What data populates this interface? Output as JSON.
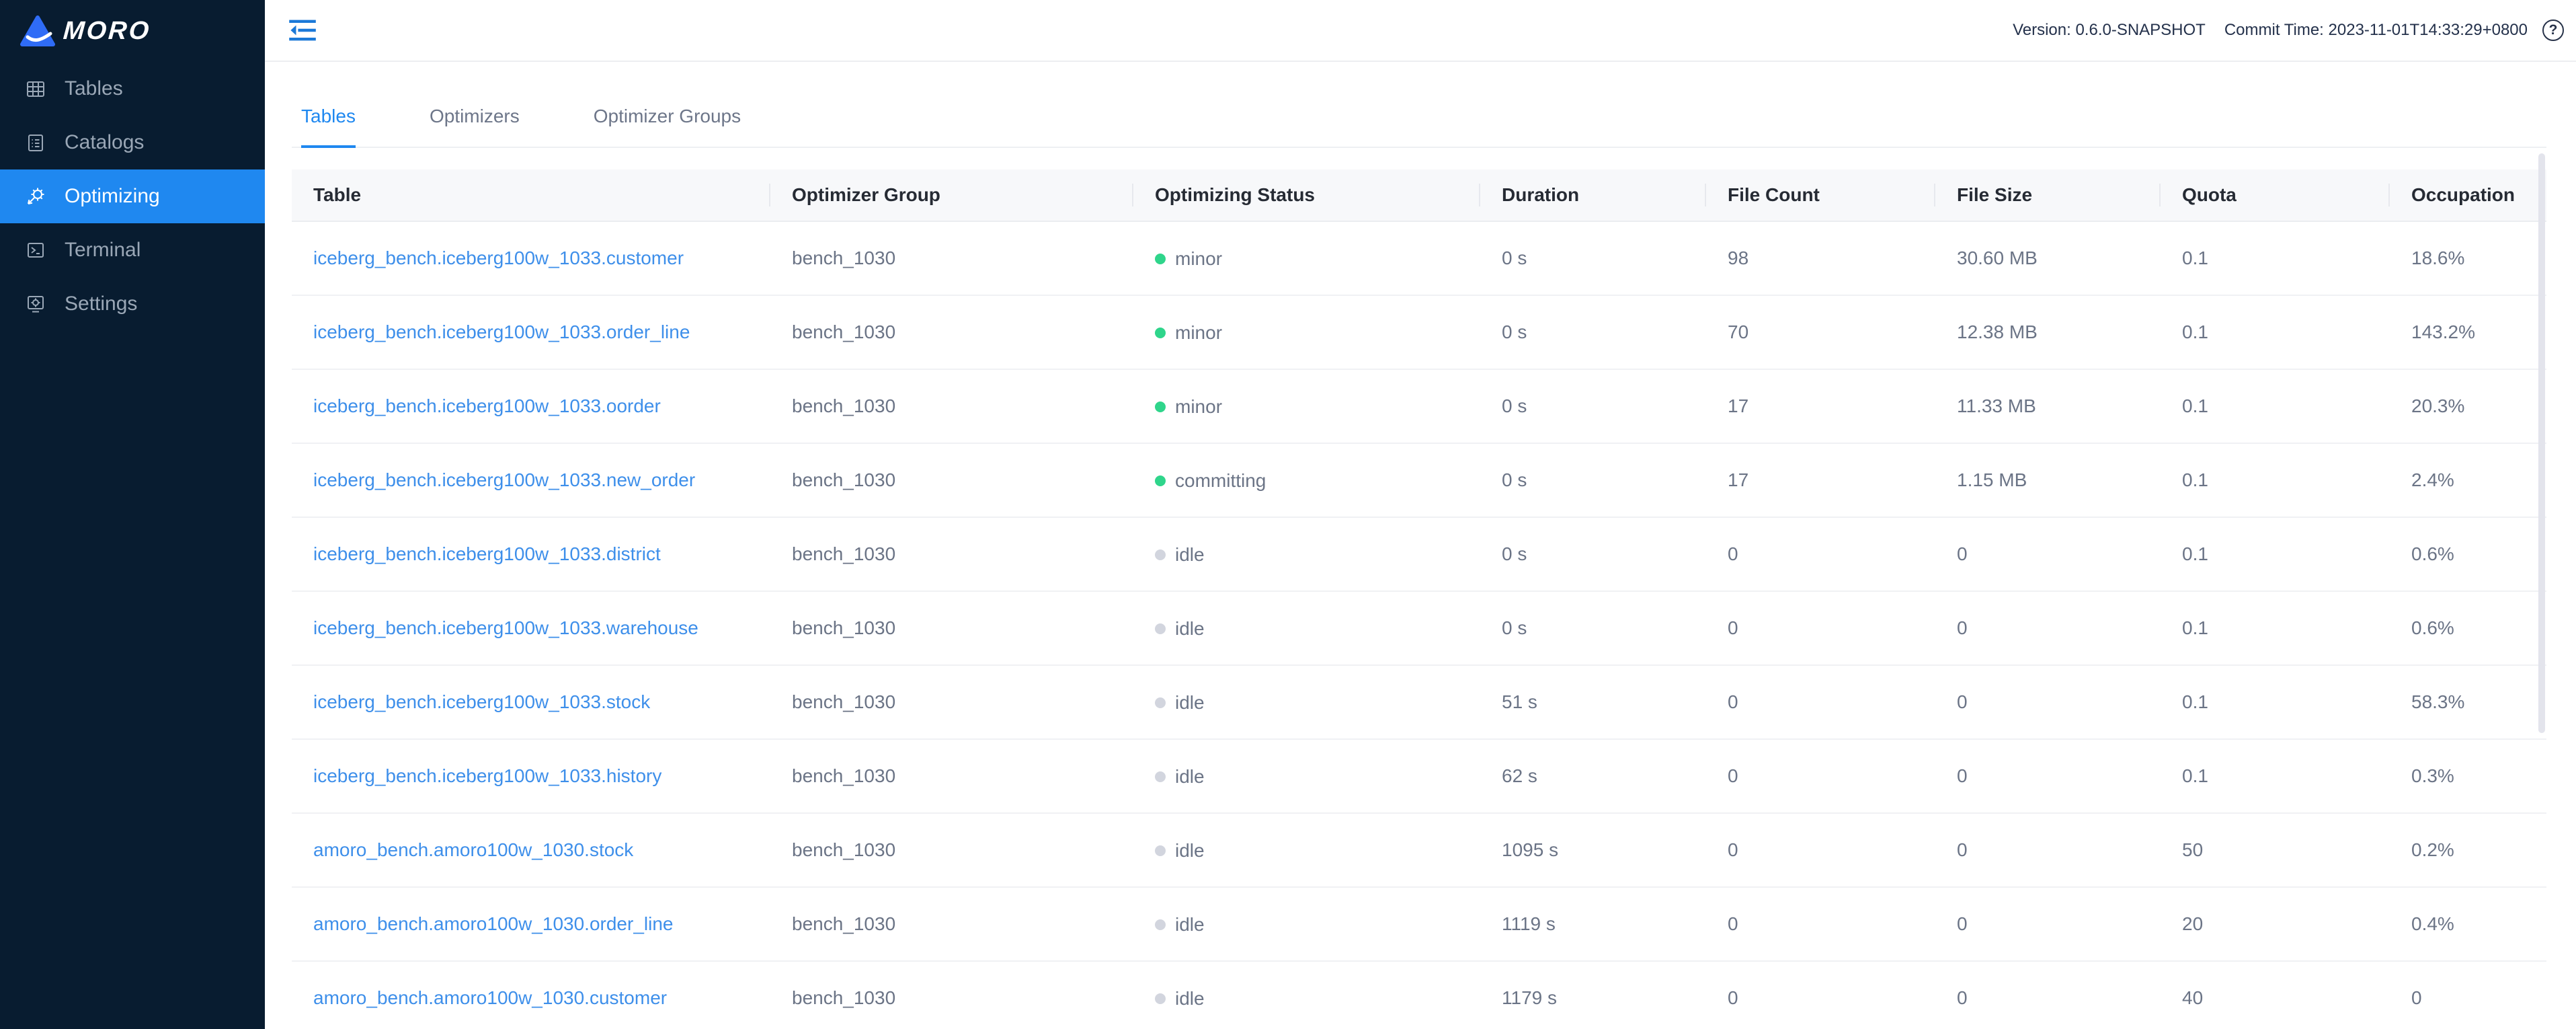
{
  "app": {
    "logo_text": "MORO"
  },
  "sidebar": {
    "items": [
      {
        "name": "sidebar-item-tables",
        "label": "Tables",
        "icon": "tables-grid-icon",
        "state": ""
      },
      {
        "name": "sidebar-item-catalogs",
        "label": "Catalogs",
        "icon": "catalogs-list-icon",
        "state": ""
      },
      {
        "name": "sidebar-item-optimizing",
        "label": "Optimizing",
        "icon": "optimizing-gear-icon",
        "state": "active"
      },
      {
        "name": "sidebar-item-terminal",
        "label": "Terminal",
        "icon": "terminal-icon",
        "state": ""
      },
      {
        "name": "sidebar-item-settings",
        "label": "Settings",
        "icon": "settings-monitor-icon",
        "state": ""
      }
    ]
  },
  "topbar": {
    "version_label": "Version: 0.6.0-SNAPSHOT",
    "commit_label": "Commit Time: 2023-11-01T14:33:29+0800",
    "help_icon": "question-circle-icon",
    "collapse_icon": "menu-fold-icon"
  },
  "tabs": [
    {
      "name": "tab-tables",
      "label": "Tables",
      "state": "active"
    },
    {
      "name": "tab-optimizers",
      "label": "Optimizers",
      "state": ""
    },
    {
      "name": "tab-optimizer-groups",
      "label": "Optimizer Groups",
      "state": ""
    }
  ],
  "table": {
    "columns": [
      "Table",
      "Optimizer Group",
      "Optimizing Status",
      "Duration",
      "File Count",
      "File Size",
      "Quota",
      "Occupation"
    ],
    "rows": [
      {
        "table": "iceberg_bench.iceberg100w_1033.customer",
        "group": "bench_1030",
        "status": "minor",
        "status_type": "green",
        "duration": "0 s",
        "file_count": "98",
        "file_size": "30.60 MB",
        "quota": "0.1",
        "occupation": "18.6%"
      },
      {
        "table": "iceberg_bench.iceberg100w_1033.order_line",
        "group": "bench_1030",
        "status": "minor",
        "status_type": "green",
        "duration": "0 s",
        "file_count": "70",
        "file_size": "12.38 MB",
        "quota": "0.1",
        "occupation": "143.2%"
      },
      {
        "table": "iceberg_bench.iceberg100w_1033.oorder",
        "group": "bench_1030",
        "status": "minor",
        "status_type": "green",
        "duration": "0 s",
        "file_count": "17",
        "file_size": "11.33 MB",
        "quota": "0.1",
        "occupation": "20.3%"
      },
      {
        "table": "iceberg_bench.iceberg100w_1033.new_order",
        "group": "bench_1030",
        "status": "committing",
        "status_type": "green",
        "duration": "0 s",
        "file_count": "17",
        "file_size": "1.15 MB",
        "quota": "0.1",
        "occupation": "2.4%"
      },
      {
        "table": "iceberg_bench.iceberg100w_1033.district",
        "group": "bench_1030",
        "status": "idle",
        "status_type": "gray",
        "duration": "0 s",
        "file_count": "0",
        "file_size": "0",
        "quota": "0.1",
        "occupation": "0.6%"
      },
      {
        "table": "iceberg_bench.iceberg100w_1033.warehouse",
        "group": "bench_1030",
        "status": "idle",
        "status_type": "gray",
        "duration": "0 s",
        "file_count": "0",
        "file_size": "0",
        "quota": "0.1",
        "occupation": "0.6%"
      },
      {
        "table": "iceberg_bench.iceberg100w_1033.stock",
        "group": "bench_1030",
        "status": "idle",
        "status_type": "gray",
        "duration": "51 s",
        "file_count": "0",
        "file_size": "0",
        "quota": "0.1",
        "occupation": "58.3%"
      },
      {
        "table": "iceberg_bench.iceberg100w_1033.history",
        "group": "bench_1030",
        "status": "idle",
        "status_type": "gray",
        "duration": "62 s",
        "file_count": "0",
        "file_size": "0",
        "quota": "0.1",
        "occupation": "0.3%"
      },
      {
        "table": "amoro_bench.amoro100w_1030.stock",
        "group": "bench_1030",
        "status": "idle",
        "status_type": "gray",
        "duration": "1095 s",
        "file_count": "0",
        "file_size": "0",
        "quota": "50",
        "occupation": "0.2%"
      },
      {
        "table": "amoro_bench.amoro100w_1030.order_line",
        "group": "bench_1030",
        "status": "idle",
        "status_type": "gray",
        "duration": "1119 s",
        "file_count": "0",
        "file_size": "0",
        "quota": "20",
        "occupation": "0.4%"
      },
      {
        "table": "amoro_bench.amoro100w_1030.customer",
        "group": "bench_1030",
        "status": "idle",
        "status_type": "gray",
        "duration": "1179 s",
        "file_count": "0",
        "file_size": "0",
        "quota": "40",
        "occupation": "0"
      }
    ]
  },
  "colors": {
    "accent_blue": "#1f88f0",
    "sidebar_bg": "#081c30",
    "link_blue": "#3e8fea",
    "status_green": "#2fd58b",
    "status_idle_gray": "#d2d5de",
    "table_header_bg": "#f7f8fa",
    "row_border": "#f0f1f4"
  }
}
